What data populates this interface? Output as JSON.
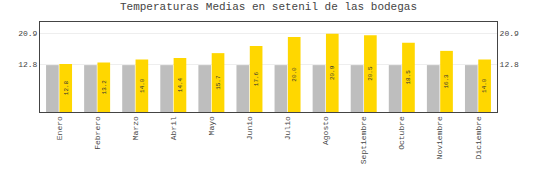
{
  "chart_data": {
    "type": "bar",
    "title": "Temperaturas Medias en setenil de las bodegas",
    "categories": [
      "Enero",
      "Febrero",
      "Marzo",
      "Abril",
      "Mayo",
      "Junio",
      "Julio",
      "Agosto",
      "Septiembre",
      "Octubre",
      "Noviembre",
      "Diciembre"
    ],
    "series": [
      {
        "color": "#BEBEBE",
        "values": [
          12.5,
          12.5,
          12.5,
          12.5,
          12.5,
          12.5,
          12.5,
          12.5,
          12.5,
          12.5,
          12.5,
          12.5
        ]
      },
      {
        "color": "#FFD700",
        "values": [
          12.8,
          13.2,
          14.0,
          14.4,
          15.7,
          17.6,
          20.0,
          20.9,
          20.5,
          18.5,
          16.3,
          14.0
        ],
        "value_labels": [
          "12.8",
          "13.2",
          "14.0",
          "14.4",
          "15.7",
          "17.6",
          "20.0",
          "20.9",
          "20.5",
          "18.5",
          "16.3",
          "14.0"
        ],
        "data_labels": true
      }
    ],
    "ylim": [
      0,
      24.0
    ],
    "yticks": [
      12.8,
      20.9
    ],
    "y2lim": [
      0,
      24.0
    ],
    "y2ticks": [
      12.8,
      20.9
    ],
    "grid": true
  }
}
